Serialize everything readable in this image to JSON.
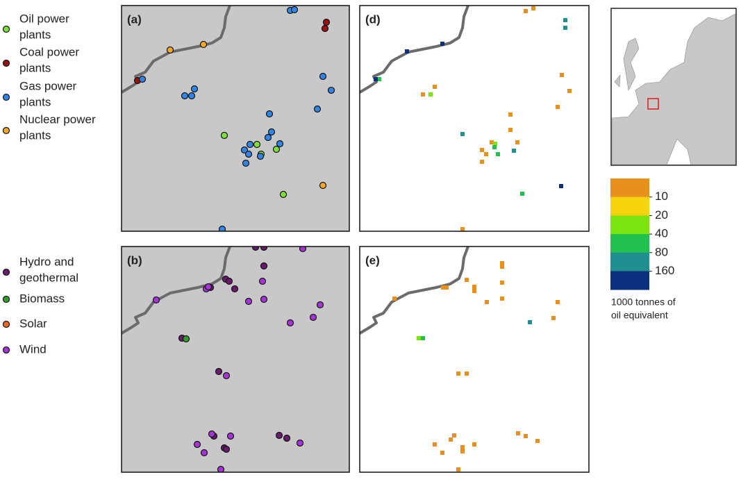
{
  "legend_a": {
    "items": [
      {
        "lines": [
          "Oil power",
          "plants"
        ],
        "color": "#7ee03c"
      },
      {
        "lines": [
          "Coal power",
          "plants"
        ],
        "color": "#9b1010"
      },
      {
        "lines": [
          "Gas power",
          "plants"
        ],
        "color": "#2f86e8"
      },
      {
        "lines": [
          "Nuclear power",
          "plants"
        ],
        "color": "#f5a623"
      }
    ]
  },
  "legend_b": {
    "items": [
      {
        "lines": [
          "Hydro and",
          "geothermal"
        ],
        "color": "#6a1a6e"
      },
      {
        "lines": [
          "Biomass"
        ],
        "color": "#2f9e2a"
      },
      {
        "lines": [
          "Solar"
        ],
        "color": "#f06a20"
      },
      {
        "lines": [
          "Wind"
        ],
        "color": "#a533d8"
      }
    ]
  },
  "panels": [
    "(a)",
    "(d)",
    "(b)",
    "(e)"
  ],
  "colorbar": {
    "colors": [
      "#e8901e",
      "#f5d40b",
      "#7ce410",
      "#22c050",
      "#1f8f8f",
      "#0b2f7c"
    ],
    "ticks": [
      10,
      20,
      40,
      80,
      160
    ],
    "caption": [
      "1000 tonnes of",
      "oil equivalent"
    ]
  }
}
